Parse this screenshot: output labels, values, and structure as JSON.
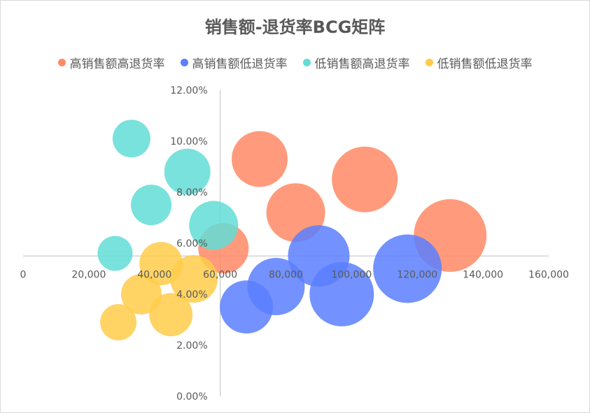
{
  "chart_data": {
    "type": "bubble",
    "title": "销售额-退货率BCG矩阵",
    "xlim": [
      0,
      160000
    ],
    "ylim": [
      0,
      0.12
    ],
    "x_ticks": [
      "0",
      "20,000",
      "40,000",
      "60,000",
      "80,000",
      "100,000",
      "120,000",
      "140,000",
      "160,000"
    ],
    "y_ticks": [
      "0.00%",
      "2.00%",
      "4.00%",
      "6.00%",
      "8.00%",
      "10.00%",
      "12.00%"
    ],
    "axis_cross": {
      "x": 60000,
      "y": 0.055
    },
    "legend_position": "top",
    "grid": false,
    "series": [
      {
        "name": "高销售额高退货率",
        "color": "#FF8A65",
        "points": [
          {
            "x": 61000,
            "y": 0.058,
            "size": 36
          },
          {
            "x": 72000,
            "y": 0.093,
            "size": 40
          },
          {
            "x": 83000,
            "y": 0.072,
            "size": 42
          },
          {
            "x": 104000,
            "y": 0.085,
            "size": 47
          },
          {
            "x": 130000,
            "y": 0.063,
            "size": 52
          }
        ]
      },
      {
        "name": "高销售额低退货率",
        "color": "#5B7FFF",
        "points": [
          {
            "x": 68000,
            "y": 0.035,
            "size": 38
          },
          {
            "x": 77000,
            "y": 0.043,
            "size": 41
          },
          {
            "x": 90000,
            "y": 0.055,
            "size": 44
          },
          {
            "x": 97000,
            "y": 0.04,
            "size": 46
          },
          {
            "x": 117000,
            "y": 0.05,
            "size": 49
          }
        ]
      },
      {
        "name": "低销售额高退货率",
        "color": "#62DDD6",
        "points": [
          {
            "x": 28000,
            "y": 0.056,
            "size": 25
          },
          {
            "x": 33000,
            "y": 0.101,
            "size": 27
          },
          {
            "x": 39000,
            "y": 0.075,
            "size": 29
          },
          {
            "x": 50000,
            "y": 0.088,
            "size": 33
          },
          {
            "x": 58000,
            "y": 0.067,
            "size": 35
          }
        ]
      },
      {
        "name": "低销售额低退货率",
        "color": "#FFCC4A",
        "points": [
          {
            "x": 29000,
            "y": 0.029,
            "size": 26
          },
          {
            "x": 36000,
            "y": 0.04,
            "size": 29
          },
          {
            "x": 42000,
            "y": 0.052,
            "size": 31
          },
          {
            "x": 45000,
            "y": 0.032,
            "size": 31
          },
          {
            "x": 52000,
            "y": 0.046,
            "size": 34
          }
        ]
      }
    ]
  }
}
